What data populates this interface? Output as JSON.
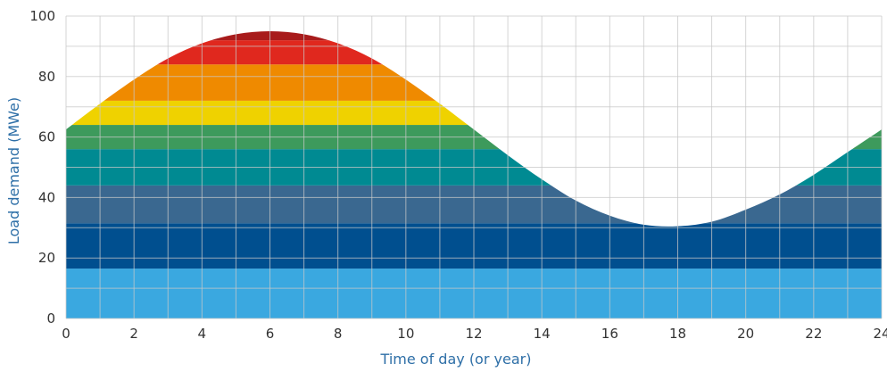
{
  "chart_data": {
    "type": "area",
    "title": "",
    "xlabel": "Time of day (or year)",
    "ylabel": "Load demand (MWe)",
    "xlim": [
      0,
      24
    ],
    "ylim": [
      0,
      100
    ],
    "x_ticks": [
      0,
      2,
      4,
      6,
      8,
      10,
      12,
      14,
      16,
      18,
      20,
      22,
      24
    ],
    "y_ticks": [
      0,
      20,
      40,
      60,
      80,
      100
    ],
    "x_grid_step": 1,
    "y_grid_step": 10,
    "grid": true,
    "demand_curve": {
      "x": [
        0,
        1,
        2,
        3,
        4,
        5,
        6,
        7,
        8,
        9,
        10,
        11,
        12,
        13,
        14,
        15,
        16,
        17,
        18,
        19,
        20,
        21,
        22,
        23,
        24
      ],
      "y": [
        62.5,
        71,
        79,
        86,
        91,
        94,
        95,
        94,
        91,
        86,
        79,
        71,
        62.5,
        54,
        46,
        39,
        34,
        31,
        30.5,
        32,
        36,
        41,
        47.5,
        55,
        62.5
      ]
    },
    "bands": [
      {
        "min": 0,
        "max": 16.5,
        "color": "#3aa8e0"
      },
      {
        "min": 16.5,
        "max": 31.5,
        "color": "#004f8f"
      },
      {
        "min": 31.5,
        "max": 44,
        "color": "#3a6890"
      },
      {
        "min": 44,
        "max": 56,
        "color": "#008a92"
      },
      {
        "min": 56,
        "max": 64,
        "color": "#3d9a5c"
      },
      {
        "min": 64,
        "max": 72,
        "color": "#efd200"
      },
      {
        "min": 72,
        "max": 84,
        "color": "#ef8a00"
      },
      {
        "min": 84,
        "max": 92,
        "color": "#e0281e"
      },
      {
        "min": 92,
        "max": 100,
        "color": "#a81b1b"
      }
    ],
    "grid_color": "#c8c8c8"
  }
}
